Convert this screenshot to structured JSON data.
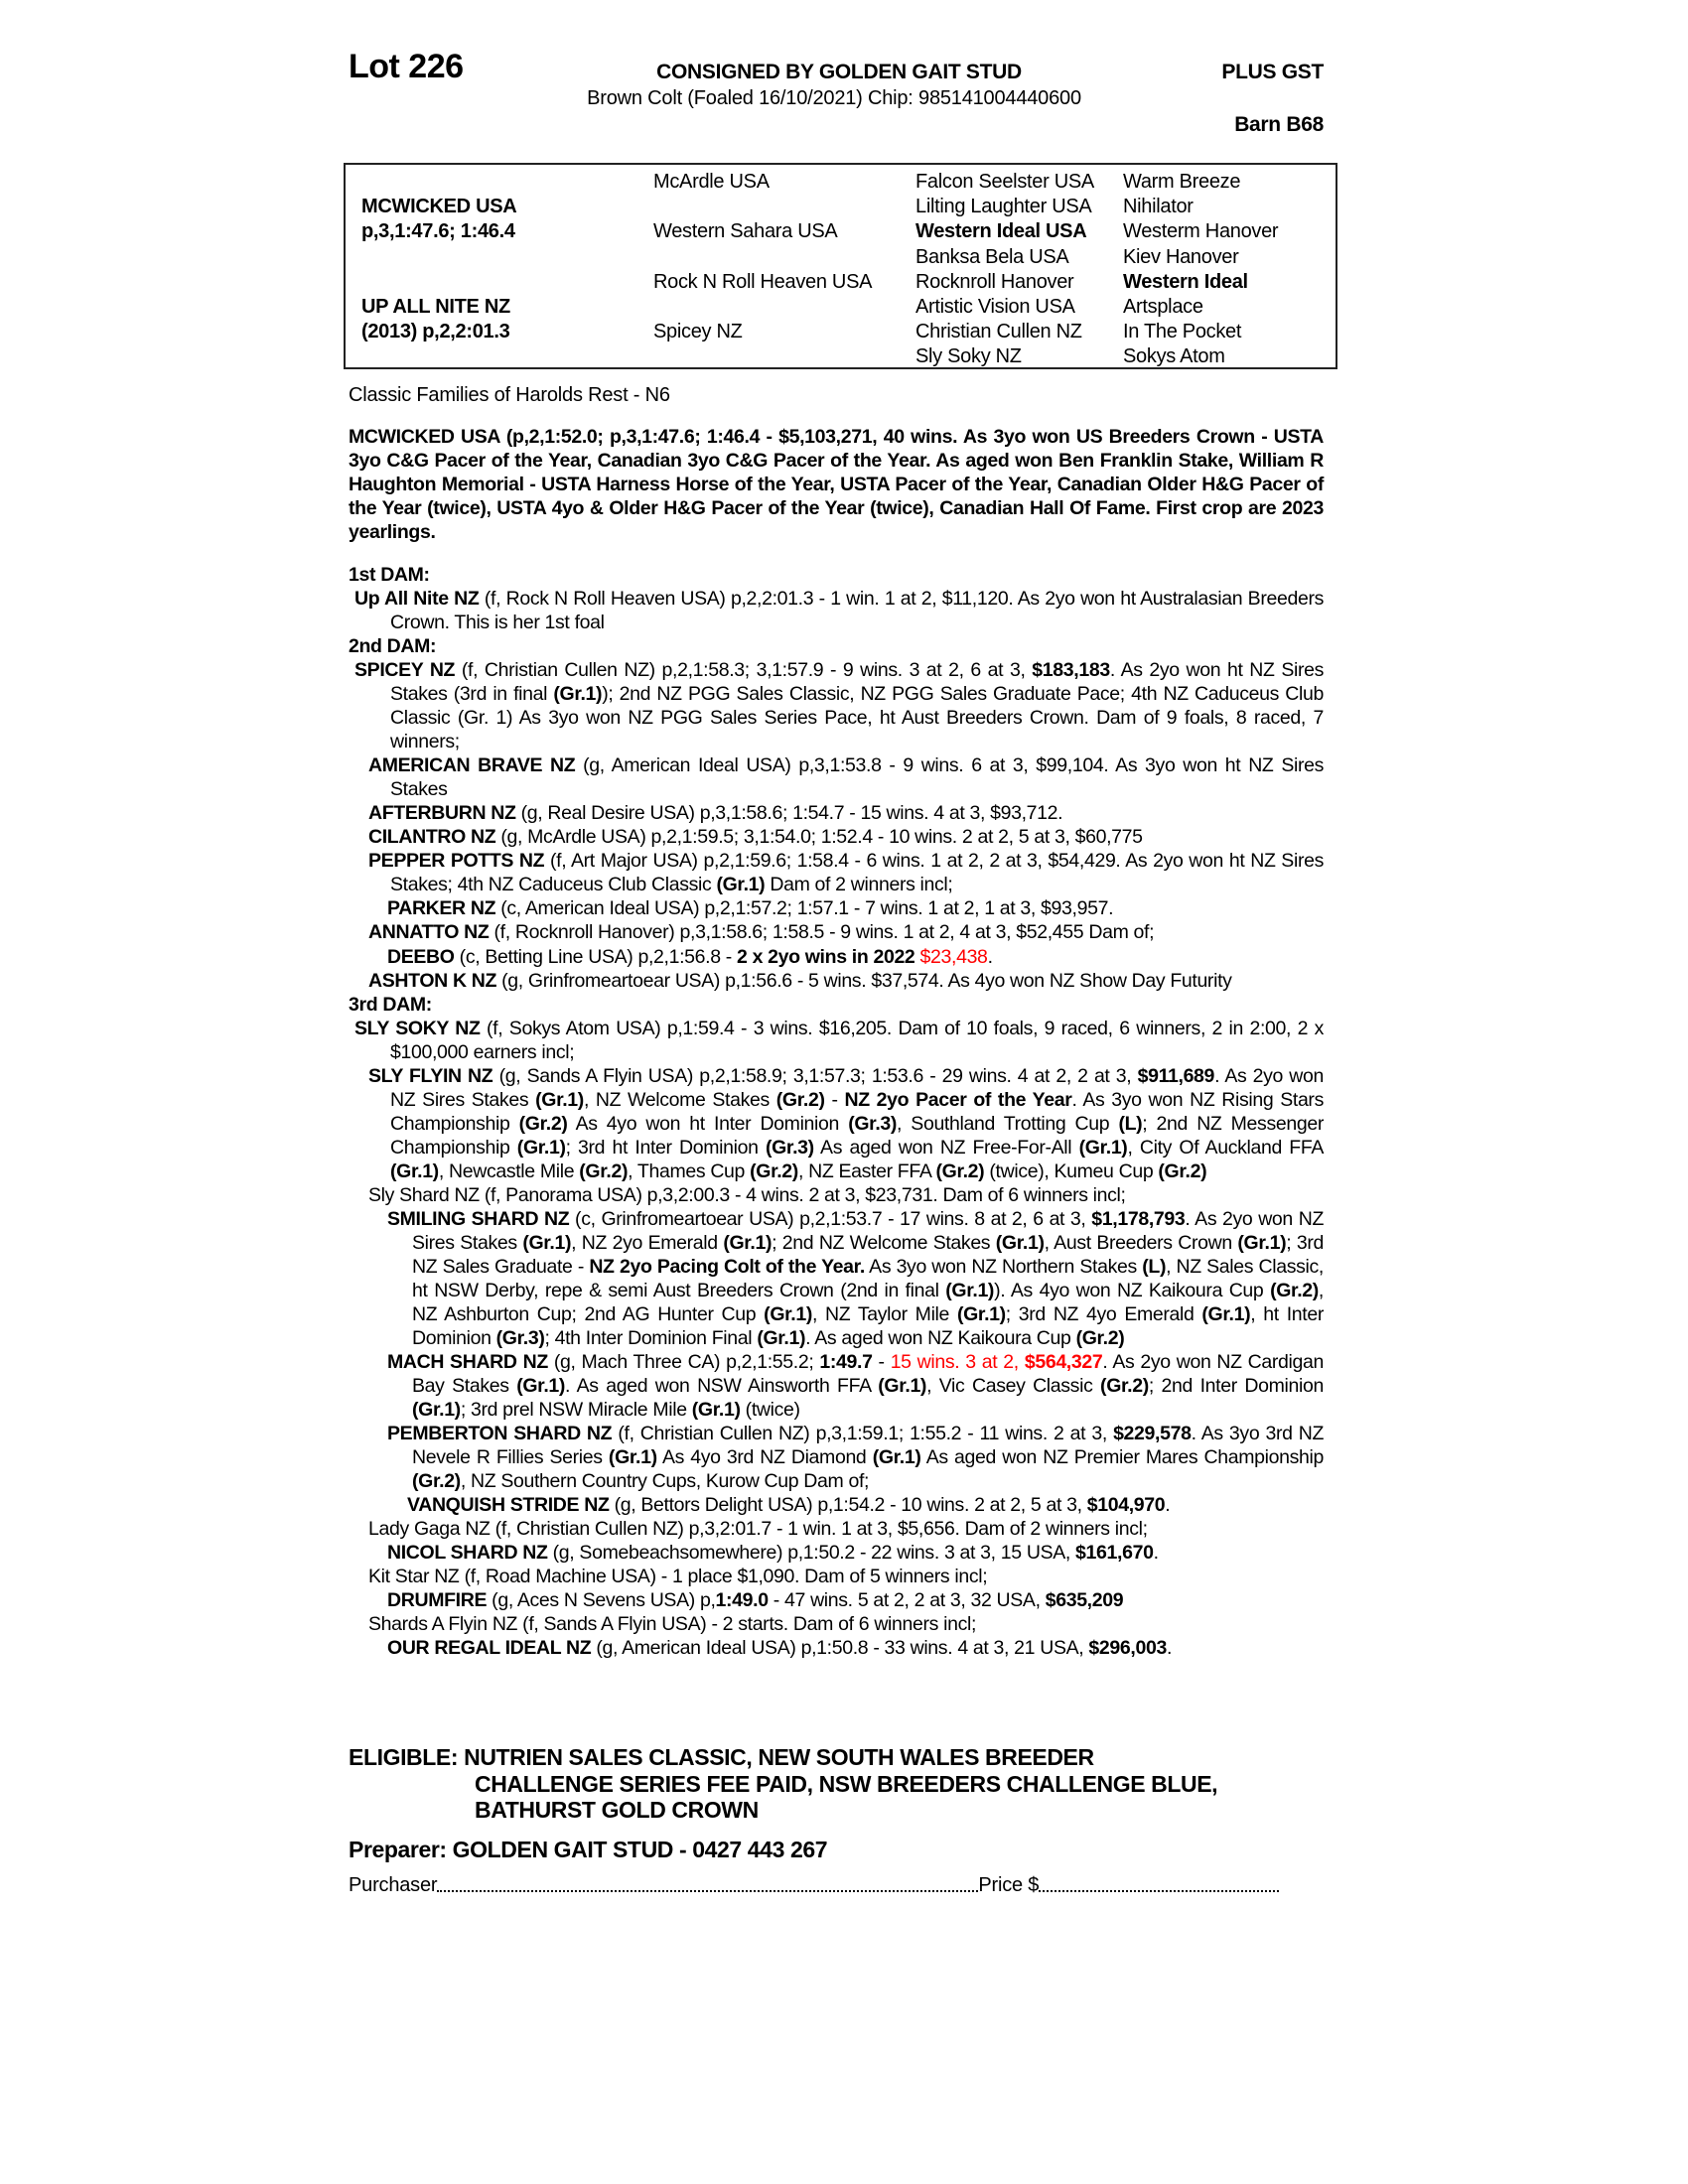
{
  "header": {
    "lot": "Lot 226",
    "consigned": "CONSIGNED BY GOLDEN GAIT STUD",
    "gst": "PLUS GST",
    "description": "Brown Colt (Foaled 16/10/2021) Chip: 985141004440600",
    "barn": "Barn B68"
  },
  "pedigree": {
    "sire_name": "MCWICKED USA",
    "sire_record": "p,3,1:47.6; 1:46.4",
    "dam_name": "UP ALL NITE NZ",
    "dam_record": "(2013) p,2,2:01.3",
    "col2": [
      "McArdle USA",
      "Western Sahara USA",
      "Rock N Roll Heaven USA",
      "Spicey NZ"
    ],
    "col3": [
      {
        "name": "Falcon Seelster USA",
        "bold": false
      },
      {
        "name": "Lilting Laughter USA",
        "bold": false
      },
      {
        "name": "Western Ideal USA",
        "bold": true
      },
      {
        "name": "Banksa Bela USA",
        "bold": false
      },
      {
        "name": "Rocknroll Hanover",
        "bold": false
      },
      {
        "name": "Artistic Vision USA",
        "bold": false
      },
      {
        "name": "Christian Cullen NZ",
        "bold": false
      },
      {
        "name": "Sly Soky NZ",
        "bold": false
      }
    ],
    "col4": [
      {
        "name": "Warm Breeze",
        "bold": false
      },
      {
        "name": "Nihilator",
        "bold": false
      },
      {
        "name": "Westerm Hanover",
        "bold": false
      },
      {
        "name": "Kiev Hanover",
        "bold": false
      },
      {
        "name": "Western Ideal",
        "bold": true
      },
      {
        "name": "Artsplace",
        "bold": false
      },
      {
        "name": "In The Pocket",
        "bold": false
      },
      {
        "name": "Sokys Atom",
        "bold": false
      }
    ]
  },
  "family": "Classic Families of Harolds Rest - N6",
  "sire_paragraph": "MCWICKED USA (p,2,1:52.0; p,3,1:47.6; 1:46.4 - $5,103,271, 40 wins. As 3yo won US Breeders Crown - USTA 3yo C&G Pacer of the Year, Canadian 3yo C&G Pacer of the Year. As aged won Ben Franklin Stake, William R Haughton Memorial - USTA Harness Horse of the Year, USTA Pacer of the Year, Canadian Older H&G Pacer of the Year (twice), USTA 4yo & Older H&G Pacer of the Year (twice), Canadian Hall Of Fame. First crop are 2023 yearlings.",
  "dams": [
    {
      "heading": "1st DAM:",
      "entries": [
        {
          "level": 0,
          "runs": [
            [
              "Up All Nite NZ",
              "b"
            ],
            [
              " (f, Rock N Roll Heaven USA) p,2,2:01.3 - 1 win. 1 at 2, $11,120. As 2yo won ht Australasian Breeders Crown. This is her 1st foal",
              ""
            ]
          ]
        }
      ]
    },
    {
      "heading": "2nd DAM:",
      "entries": [
        {
          "level": 0,
          "runs": [
            [
              "SPICEY NZ",
              "b"
            ],
            [
              " (f, Christian Cullen NZ) p,2,1:58.3; 3,1:57.9 - 9 wins. 3 at 2, 6 at 3, ",
              ""
            ],
            [
              "$183,183",
              "b"
            ],
            [
              ". As 2yo won ht NZ Sires Stakes (3rd in final ",
              ""
            ],
            [
              "(Gr.1)",
              "b"
            ],
            [
              "); 2nd NZ PGG Sales Classic, NZ PGG Sales Graduate Pace; 4th NZ Caduceus Club Classic (Gr. 1) As 3yo won NZ PGG Sales Series Pace, ht Aust Breeders Crown. Dam of 9 foals, 8 raced, 7 winners;",
              ""
            ]
          ]
        },
        {
          "level": 1,
          "runs": [
            [
              "AMERICAN BRAVE NZ",
              "b"
            ],
            [
              " (g, American Ideal USA) p,3,1:53.8 - 9 wins. 6 at 3, $99,104. As 3yo won ht NZ Sires Stakes",
              ""
            ]
          ]
        },
        {
          "level": 1,
          "runs": [
            [
              "AFTERBURN NZ",
              "b"
            ],
            [
              " (g, Real Desire USA) p,3,1:58.6; 1:54.7 - 15 wins. 4 at 3, $93,712.",
              ""
            ]
          ]
        },
        {
          "level": 1,
          "runs": [
            [
              "CILANTRO NZ",
              "b"
            ],
            [
              " (g, McArdle USA) p,2,1:59.5; 3,1:54.0; 1:52.4 - 10 wins. 2 at 2, 5 at 3, $60,775",
              ""
            ]
          ]
        },
        {
          "level": 1,
          "runs": [
            [
              "PEPPER POTTS NZ",
              "b"
            ],
            [
              " (f, Art Major USA) p,2,1:59.6; 1:58.4 - 6 wins. 1 at 2, 2 at 3, $54,429. As 2yo won ht NZ Sires Stakes; 4th NZ Caduceus Club Classic ",
              ""
            ],
            [
              "(Gr.1)",
              "b"
            ],
            [
              " Dam of 2 winners incl;",
              ""
            ]
          ]
        },
        {
          "level": 2,
          "runs": [
            [
              "PARKER NZ",
              "b"
            ],
            [
              " (c, American Ideal USA) p,2,1:57.2; 1:57.1 - 7 wins. 1 at 2, 1 at 3, $93,957.",
              ""
            ]
          ]
        },
        {
          "level": 1,
          "runs": [
            [
              "ANNATTO NZ",
              "b"
            ],
            [
              " (f, Rocknroll Hanover) p,3,1:58.6; 1:58.5 - 9 wins. 1 at 2, 4 at 3, $52,455 Dam of;",
              ""
            ]
          ]
        },
        {
          "level": 2,
          "runs": [
            [
              "DEEBO",
              "b"
            ],
            [
              " (c, Betting Line USA) p,2,1:56.8 - ",
              ""
            ],
            [
              "2 x 2yo wins in 2022",
              "b"
            ],
            [
              " ",
              ""
            ],
            [
              "$23,438",
              "r"
            ],
            [
              ".",
              ""
            ]
          ]
        },
        {
          "level": 1,
          "runs": [
            [
              "ASHTON K NZ",
              "b"
            ],
            [
              " (g, Grinfromeartoear USA) p,1:56.6 - 5 wins. $37,574. As 4yo won NZ Show Day Futurity",
              ""
            ]
          ]
        }
      ]
    },
    {
      "heading": "3rd DAM:",
      "entries": [
        {
          "level": 0,
          "runs": [
            [
              "SLY SOKY NZ",
              "b"
            ],
            [
              " (f, Sokys Atom USA) p,1:59.4 - 3 wins. $16,205. Dam of 10 foals, 9 raced, 6 winners, 2 in 2:00, 2 x $100,000 earners incl;",
              ""
            ]
          ]
        },
        {
          "level": 1,
          "runs": [
            [
              "SLY FLYIN NZ",
              "b"
            ],
            [
              " (g, Sands A Flyin USA) p,2,1:58.9; 3,1:57.3; 1:53.6 - 29 wins. 4 at 2, 2 at 3, ",
              ""
            ],
            [
              "$911,689",
              "b"
            ],
            [
              ". As 2yo won NZ Sires Stakes ",
              ""
            ],
            [
              "(Gr.1)",
              "b"
            ],
            [
              ", NZ Welcome Stakes ",
              ""
            ],
            [
              "(Gr.2)",
              "b"
            ],
            [
              " - ",
              ""
            ],
            [
              "NZ 2yo Pacer of the Year",
              "b"
            ],
            [
              ". As 3yo won NZ Rising Stars Championship ",
              ""
            ],
            [
              "(Gr.2)",
              "b"
            ],
            [
              " As 4yo won ht Inter Dominion ",
              ""
            ],
            [
              "(Gr.3)",
              "b"
            ],
            [
              ", Southland Trotting Cup ",
              ""
            ],
            [
              "(L)",
              "b"
            ],
            [
              "; 2nd NZ Messenger Championship ",
              ""
            ],
            [
              "(Gr.1)",
              "b"
            ],
            [
              "; 3rd ht Inter Dominion ",
              ""
            ],
            [
              "(Gr.3)",
              "b"
            ],
            [
              " As aged won NZ Free-For-All ",
              ""
            ],
            [
              "(Gr.1)",
              "b"
            ],
            [
              ", City Of Auckland FFA ",
              ""
            ],
            [
              "(Gr.1)",
              "b"
            ],
            [
              ", Newcastle Mile ",
              ""
            ],
            [
              "(Gr.2)",
              "b"
            ],
            [
              ", Thames Cup ",
              ""
            ],
            [
              "(Gr.2)",
              "b"
            ],
            [
              ", NZ Easter FFA ",
              ""
            ],
            [
              "(Gr.2)",
              "b"
            ],
            [
              " (twice), Kumeu Cup ",
              ""
            ],
            [
              "(Gr.2)",
              "b"
            ]
          ]
        },
        {
          "level": 1,
          "runs": [
            [
              "Sly Shard NZ (f, Panorama USA) p,3,2:00.3 - 4 wins. 2 at 3, $23,731. Dam of 6 winners incl;",
              ""
            ]
          ]
        },
        {
          "level": 2,
          "runs": [
            [
              "SMILING SHARD NZ",
              "b"
            ],
            [
              " (c, Grinfromeartoear USA) p,2,1:53.7 - 17 wins. 8 at 2, 6 at 3, ",
              ""
            ],
            [
              "$1,178,793",
              "b"
            ],
            [
              ". As 2yo won NZ Sires Stakes ",
              ""
            ],
            [
              "(Gr.1)",
              "b"
            ],
            [
              ", NZ 2yo Emerald ",
              ""
            ],
            [
              "(Gr.1)",
              "b"
            ],
            [
              "; 2nd NZ Welcome Stakes ",
              ""
            ],
            [
              "(Gr.1)",
              "b"
            ],
            [
              ", Aust Breeders Crown ",
              ""
            ],
            [
              "(Gr.1)",
              "b"
            ],
            [
              "; 3rd NZ Sales Graduate -  ",
              ""
            ],
            [
              "NZ 2yo Pacing Colt of the Year.",
              "b"
            ],
            [
              " As 3yo won NZ Northern Stakes ",
              ""
            ],
            [
              "(L)",
              "b"
            ],
            [
              ", NZ Sales Classic, ht NSW Derby, repe & semi Aust Breeders Crown (2nd in final ",
              ""
            ],
            [
              "(Gr.1)",
              "b"
            ],
            [
              "). As 4yo won NZ Kaikoura Cup ",
              ""
            ],
            [
              "(Gr.2)",
              "b"
            ],
            [
              ", NZ Ashburton Cup; 2nd AG Hunter Cup ",
              ""
            ],
            [
              "(Gr.1)",
              "b"
            ],
            [
              ", NZ Taylor Mile ",
              ""
            ],
            [
              "(Gr.1)",
              "b"
            ],
            [
              "; 3rd NZ 4yo Emerald ",
              ""
            ],
            [
              "(Gr.1)",
              "b"
            ],
            [
              ", ht Inter Dominion ",
              ""
            ],
            [
              "(Gr.3)",
              "b"
            ],
            [
              "; 4th Inter Dominion Final ",
              ""
            ],
            [
              "(Gr.1)",
              "b"
            ],
            [
              ". As aged won NZ Kaikoura Cup ",
              ""
            ],
            [
              "(Gr.2)",
              "b"
            ]
          ]
        },
        {
          "level": 2,
          "runs": [
            [
              "MACH SHARD NZ",
              "b"
            ],
            [
              " (g, Mach Three CA) p,2,1:55.2; ",
              ""
            ],
            [
              "1:49.7",
              "b"
            ],
            [
              " - ",
              ""
            ],
            [
              "15 wins. 3 at 2, ",
              "r"
            ],
            [
              "$564,327",
              "rb"
            ],
            [
              ". As 2yo won NZ Cardigan Bay Stakes ",
              ""
            ],
            [
              "(Gr.1)",
              "b"
            ],
            [
              ". As aged won NSW Ainsworth FFA ",
              ""
            ],
            [
              "(Gr.1)",
              "b"
            ],
            [
              ", Vic Casey Classic ",
              ""
            ],
            [
              "(Gr.2)",
              "b"
            ],
            [
              "; 2nd Inter Dominion ",
              ""
            ],
            [
              "(Gr.1)",
              "b"
            ],
            [
              "; 3rd prel NSW Miracle Mile ",
              ""
            ],
            [
              "(Gr.1)",
              "b"
            ],
            [
              " (twice)",
              ""
            ]
          ]
        },
        {
          "level": 2,
          "runs": [
            [
              "PEMBERTON SHARD NZ",
              "b"
            ],
            [
              " (f, Christian Cullen NZ) p,3,1:59.1; 1:55.2 - 11 wins. 2 at 3, ",
              ""
            ],
            [
              "$229,578",
              "b"
            ],
            [
              ". As 3yo 3rd NZ Nevele R Fillies Series ",
              ""
            ],
            [
              "(Gr.1)",
              "b"
            ],
            [
              " As 4yo 3rd NZ Diamond ",
              ""
            ],
            [
              "(Gr.1)",
              "b"
            ],
            [
              " As aged won NZ Premier Mares Championship ",
              ""
            ],
            [
              "(Gr.2)",
              "b"
            ],
            [
              ", NZ Southern Country Cups, Kurow Cup Dam of;",
              ""
            ]
          ]
        },
        {
          "level": 3,
          "runs": [
            [
              "VANQUISH STRIDE NZ",
              "b"
            ],
            [
              " (g, Bettors Delight USA) p,1:54.2 - 10 wins. 2 at 2, 5 at 3, ",
              ""
            ],
            [
              "$104,970",
              "b"
            ],
            [
              ".",
              ""
            ]
          ]
        },
        {
          "level": 1,
          "runs": [
            [
              "Lady Gaga NZ (f, Christian Cullen NZ) p,3,2:01.7 - 1 win. 1 at 3, $5,656. Dam of 2 winners incl;",
              ""
            ]
          ]
        },
        {
          "level": 2,
          "runs": [
            [
              "NICOL SHARD NZ",
              "b"
            ],
            [
              " (g, Somebeachsomewhere) p,1:50.2 - 22 wins. 3 at 3, 15 USA, ",
              ""
            ],
            [
              "$161,670",
              "b"
            ],
            [
              ".",
              ""
            ]
          ]
        },
        {
          "level": 1,
          "runs": [
            [
              "Kit Star NZ (f, Road Machine USA) - 1 place $1,090. Dam of 5 winners incl;",
              ""
            ]
          ]
        },
        {
          "level": 2,
          "runs": [
            [
              "DRUMFIRE",
              "b"
            ],
            [
              " (g, Aces N Sevens USA) p,",
              ""
            ],
            [
              "1:49.0",
              "b"
            ],
            [
              " - 47 wins. 5 at 2, 2 at 3, 32 USA, ",
              ""
            ],
            [
              "$635,209",
              "b"
            ]
          ]
        },
        {
          "level": 1,
          "runs": [
            [
              "Shards A Flyin NZ (f, Sands A Flyin USA) - 2 starts. Dam of 6 winners incl;",
              ""
            ]
          ]
        },
        {
          "level": 2,
          "runs": [
            [
              "OUR REGAL IDEAL NZ",
              "b"
            ],
            [
              " (g, American Ideal USA) p,1:50.8 - 33 wins. 4 at 3, 21 USA, ",
              ""
            ],
            [
              "$296,003",
              "b"
            ],
            [
              ".",
              ""
            ]
          ]
        }
      ]
    }
  ],
  "eligible": [
    "ELIGIBLE: NUTRIEN SALES CLASSIC, NEW SOUTH WALES BREEDER",
    "CHALLENGE SERIES FEE PAID, NSW BREEDERS CHALLENGE BLUE,",
    "BATHURST GOLD CROWN"
  ],
  "preparer": "Preparer: GOLDEN GAIT STUD - 0427 443 267",
  "purchase": {
    "purchaser_label": "Purchaser",
    "price_label": "Price $"
  },
  "colors": {
    "text": "#000000",
    "highlight": "#ff0000"
  }
}
